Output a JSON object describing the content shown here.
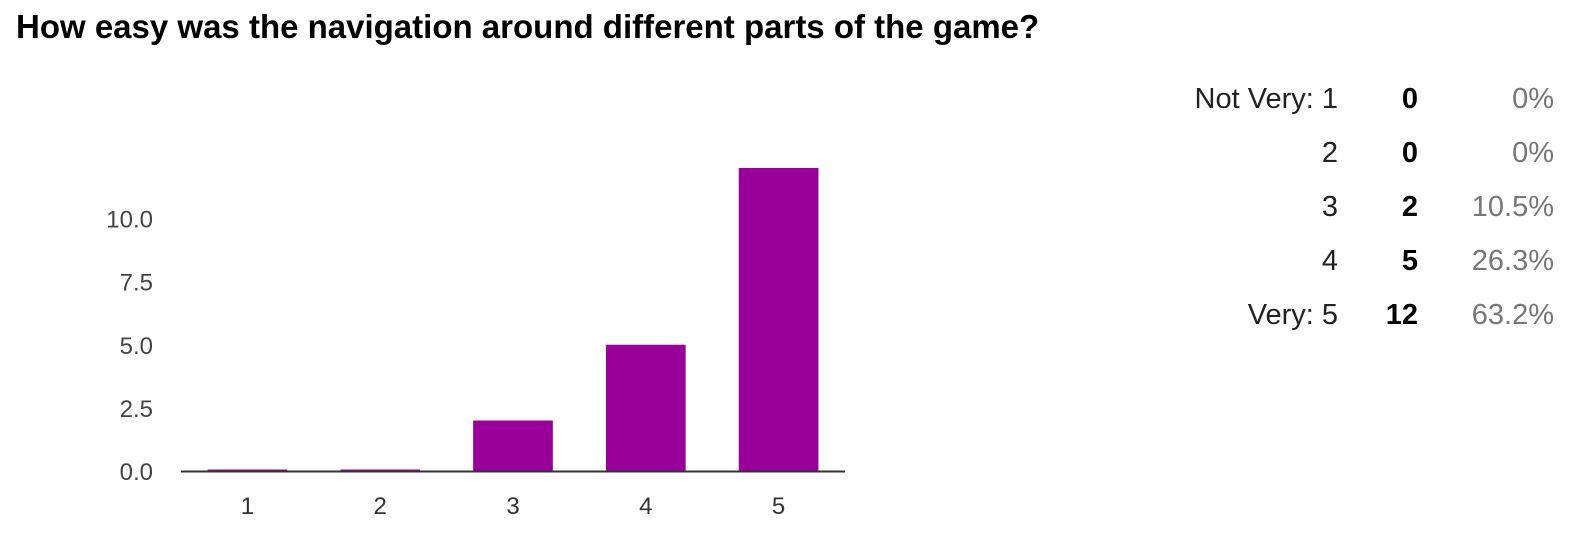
{
  "question": {
    "title": "How easy was the navigation around different parts of the game?"
  },
  "summary": [
    {
      "label": "Not Very: 1",
      "count": "0",
      "percent": "0%"
    },
    {
      "label": "2",
      "count": "0",
      "percent": "0%"
    },
    {
      "label": "3",
      "count": "2",
      "percent": "10.5%"
    },
    {
      "label": "4",
      "count": "5",
      "percent": "26.3%"
    },
    {
      "label": "Very: 5",
      "count": "12",
      "percent": "63.2%"
    }
  ],
  "chart_data": {
    "type": "bar",
    "categories": [
      "1",
      "2",
      "3",
      "4",
      "5"
    ],
    "values": [
      0,
      0,
      2,
      5,
      12
    ],
    "ylim": [
      0,
      12
    ],
    "yticks": [
      "0.0",
      "2.5",
      "5.0",
      "7.5",
      "10.0"
    ],
    "ytick_values": [
      0,
      2.5,
      5,
      7.5,
      10
    ],
    "grid": false,
    "bar_color": "#990099",
    "axis_color": "#333333"
  }
}
